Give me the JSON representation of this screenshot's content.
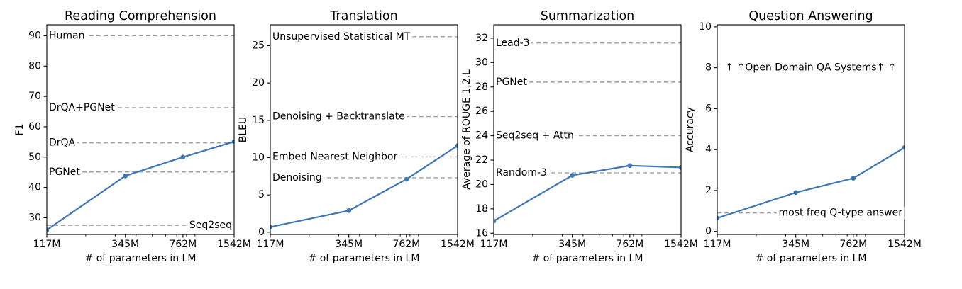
{
  "figure": {
    "xlabel": "# of parameters in LM",
    "x_scale": "log",
    "x_values": [
      117,
      345,
      762,
      1542
    ],
    "x_tick_labels": [
      "117M",
      "345M",
      "762M",
      "1542M"
    ],
    "x_minor_values": [
      200,
      300,
      400,
      500,
      600,
      700,
      800,
      900
    ],
    "colors": {
      "series_line": "#3e77b6",
      "baseline_dash": "#a0a0a0",
      "text": "#000000",
      "spine": "#000000",
      "background": "#ffffff"
    }
  },
  "chart_data": [
    {
      "type": "line",
      "title": "Reading Comprehension",
      "ylabel": "F1",
      "xlabel": "# of parameters in LM",
      "ylim": [
        24.5,
        93.6
      ],
      "yticks": [
        30,
        40,
        50,
        60,
        70,
        80,
        90
      ],
      "x": [
        117,
        345,
        762,
        1542
      ],
      "series": [
        {
          "values": [
            26.0,
            43.8,
            50.0,
            55.1
          ]
        }
      ],
      "annotations": [
        {
          "label": "Human",
          "value": 90.0,
          "align": "left",
          "line": true
        },
        {
          "label": "DrQA+PGNet",
          "value": 66.3,
          "align": "left",
          "line": true
        },
        {
          "label": "DrQA",
          "value": 54.7,
          "align": "left",
          "line": true
        },
        {
          "label": "PGNet",
          "value": 45.1,
          "align": "left",
          "line": true
        },
        {
          "label": "Seq2seq",
          "value": 27.5,
          "align": "right",
          "line": true
        }
      ]
    },
    {
      "type": "line",
      "title": "Translation",
      "ylabel": "BLEU",
      "xlabel": "# of parameters in LM",
      "ylim": [
        -0.3,
        27.8
      ],
      "yticks": [
        0,
        5,
        10,
        15,
        20,
        25
      ],
      "x": [
        117,
        345,
        762,
        1542
      ],
      "series": [
        {
          "values": [
            0.7,
            2.9,
            7.1,
            11.6
          ]
        }
      ],
      "annotations": [
        {
          "label": "Unsupervised Statistical MT",
          "value": 26.2,
          "align": "left",
          "line": true
        },
        {
          "label": "Denoising + Backtranslate",
          "value": 15.5,
          "align": "left",
          "line": true
        },
        {
          "label": "Embed Nearest Neighbor",
          "value": 10.1,
          "align": "left",
          "line": true
        },
        {
          "label": "Denoising",
          "value": 7.3,
          "align": "left",
          "line": true
        }
      ]
    },
    {
      "type": "line",
      "title": "Summarization",
      "ylabel": "Average of ROUGE 1,2,L",
      "xlabel": "# of parameters in LM",
      "ylim": [
        15.9,
        33.1
      ],
      "yticks": [
        16,
        18,
        20,
        22,
        24,
        26,
        28,
        30,
        32
      ],
      "x": [
        117,
        345,
        762,
        1542
      ],
      "series": [
        {
          "values": [
            17.0,
            20.75,
            21.55,
            21.4
          ]
        }
      ],
      "annotations": [
        {
          "label": "Lead-3",
          "value": 31.6,
          "align": "left",
          "line": true
        },
        {
          "label": "PGNet",
          "value": 28.4,
          "align": "left",
          "line": true
        },
        {
          "label": "Seq2seq + Attn",
          "value": 24.0,
          "align": "left",
          "line": true
        },
        {
          "label": "Random-3",
          "value": 20.95,
          "align": "left",
          "line": true
        }
      ]
    },
    {
      "type": "line",
      "title": "Question Answering",
      "ylabel": "Accuracy",
      "xlabel": "# of parameters in LM",
      "ylim": [
        -0.15,
        10.1
      ],
      "yticks": [
        0,
        2,
        4,
        6,
        8,
        10
      ],
      "x": [
        117,
        345,
        762,
        1542
      ],
      "series": [
        {
          "values": [
            0.65,
            1.9,
            2.6,
            4.1
          ]
        }
      ],
      "annotations": [
        {
          "label": "↑ ↑Open Domain QA Systems↑ ↑",
          "value": 8.0,
          "align": "center",
          "line": false
        },
        {
          "label": "most freq Q-type answer",
          "value": 0.9,
          "align": "right",
          "line": true
        }
      ]
    }
  ]
}
